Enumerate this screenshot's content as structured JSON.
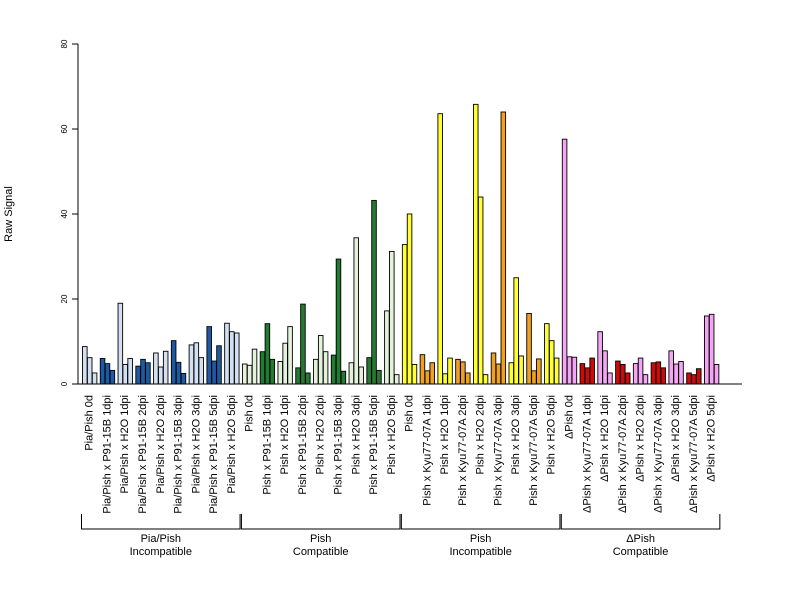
{
  "chart_data": {
    "type": "bar",
    "ylabel": "Raw Signal",
    "ylim": [
      0,
      80
    ],
    "yticks": [
      0,
      20,
      40,
      60,
      80
    ],
    "categories": [
      {
        "label": "Pia/Pish 0d",
        "values": [
          8.8,
          6.2,
          2.6
        ],
        "fill": "#d3e0f2"
      },
      {
        "label": "Pia/Pish x P91-15B 1dpi",
        "values": [
          6.0,
          4.8,
          3.2
        ],
        "fill": "#1e5aa3"
      },
      {
        "label": "Pia/Pish x H2O 1dpi",
        "values": [
          19.0,
          4.6,
          6.0
        ],
        "fill": "#d3e0f2"
      },
      {
        "label": "Pia/Pish x P91-15B 2dpi",
        "values": [
          4.2,
          5.8,
          5.0
        ],
        "fill": "#1e5aa3"
      },
      {
        "label": "Pia/Pish x H2O 2dpi",
        "values": [
          7.3,
          4.0,
          7.7
        ],
        "fill": "#d3e0f2"
      },
      {
        "label": "Pia/Pish x P91-15B 3dpi",
        "values": [
          10.2,
          5.1,
          2.5
        ],
        "fill": "#1e5aa3"
      },
      {
        "label": "Pia/Pish x H2O 3dpi",
        "values": [
          9.2,
          9.7,
          6.2
        ],
        "fill": "#d3e0f2"
      },
      {
        "label": "Pia/Pish x P91-15B 5dpi",
        "values": [
          13.5,
          5.4,
          9.0
        ],
        "fill": "#1e5aa3"
      },
      {
        "label": "Pia/Pish x H2O 5dpi",
        "values": [
          14.3,
          12.3,
          12.0
        ],
        "fill": "#d3e0f2"
      },
      {
        "label": "Pish 0d",
        "values": [
          4.7,
          4.4,
          8.2
        ],
        "fill": "#e4f2dc"
      },
      {
        "label": "Pish x P91-15B 1dpi",
        "values": [
          7.6,
          14.2,
          5.8
        ],
        "fill": "#247a32"
      },
      {
        "label": "Pish x H2O 1dpi",
        "values": [
          5.3,
          9.6,
          13.5
        ],
        "fill": "#e4f2dc"
      },
      {
        "label": "Pish x P91-15B 2dpi",
        "values": [
          3.8,
          18.8,
          2.6
        ],
        "fill": "#247a32"
      },
      {
        "label": "Pish x H2O 2dpi",
        "values": [
          5.8,
          11.4,
          7.6
        ],
        "fill": "#e4f2dc"
      },
      {
        "label": "Pish x P91-15B 3dpi",
        "values": [
          6.8,
          29.4,
          3.0
        ],
        "fill": "#247a32"
      },
      {
        "label": "Pish x H2O 3dpi",
        "values": [
          5.0,
          34.4,
          4.0
        ],
        "fill": "#e4f2dc"
      },
      {
        "label": "Pish x P91-15B 5dpi",
        "values": [
          6.2,
          43.2,
          3.2
        ],
        "fill": "#247a32"
      },
      {
        "label": "Pish x H2O 5dpi",
        "values": [
          17.2,
          31.2,
          2.2
        ],
        "fill": "#e4f2dc"
      },
      {
        "label": "Pish 0d",
        "values": [
          32.8,
          40.0,
          4.6
        ],
        "fill": "#ffff33"
      },
      {
        "label": "Pish x Kyu77-07A 1dpi",
        "values": [
          6.9,
          3.1,
          5.0
        ],
        "fill": "#f0a020"
      },
      {
        "label": "Pish x H2O 1dpi",
        "values": [
          63.6,
          2.4,
          6.1
        ],
        "fill": "#ffff33"
      },
      {
        "label": "Pish x Kyu77-07A 2dpi",
        "values": [
          5.8,
          5.2,
          2.6
        ],
        "fill": "#f0a020"
      },
      {
        "label": "Pish x H2O 2dpi",
        "values": [
          65.8,
          44.0,
          2.2
        ],
        "fill": "#ffff33"
      },
      {
        "label": "Pish x Kyu77-07A 3dpi",
        "values": [
          7.3,
          4.7,
          64.0
        ],
        "fill": "#f0a020"
      },
      {
        "label": "Pish x H2O 3dpi",
        "values": [
          5.0,
          25.0,
          6.6
        ],
        "fill": "#ffff33"
      },
      {
        "label": "Pish x Kyu77-07A 5dpi",
        "values": [
          16.6,
          3.1,
          5.9
        ],
        "fill": "#f0a020"
      },
      {
        "label": "Pish x H2O 5dpi",
        "values": [
          14.2,
          10.2,
          6.1
        ],
        "fill": "#ffff33"
      },
      {
        "label": "ΔPish 0d",
        "values": [
          57.6,
          6.4,
          6.3
        ],
        "fill": "#f4a6f4"
      },
      {
        "label": "ΔPish x Kyu77-07A 1dpi",
        "values": [
          4.8,
          3.8,
          6.1
        ],
        "fill": "#cc0a0a"
      },
      {
        "label": "ΔPish x H2O 1dpi",
        "values": [
          12.3,
          7.8,
          2.6
        ],
        "fill": "#f4a6f4"
      },
      {
        "label": "ΔPish x Kyu77-07A 2dpi",
        "values": [
          5.4,
          4.6,
          2.6
        ],
        "fill": "#cc0a0a"
      },
      {
        "label": "ΔPish x H2O 2dpi",
        "values": [
          4.8,
          6.1,
          2.2
        ],
        "fill": "#f4a6f4"
      },
      {
        "label": "ΔPish x Kyu77-07A 3dpi",
        "values": [
          5.0,
          5.2,
          3.8
        ],
        "fill": "#cc0a0a"
      },
      {
        "label": "ΔPish x H2O 3dpi",
        "values": [
          7.8,
          4.7,
          5.3
        ],
        "fill": "#f4a6f4"
      },
      {
        "label": "ΔPish x Kyu77-07A 5dpi",
        "values": [
          2.6,
          2.2,
          3.6
        ],
        "fill": "#cc0a0a"
      },
      {
        "label": "ΔPish x H2O 5dpi",
        "values": [
          16.0,
          16.4,
          4.6
        ],
        "fill": "#f4a6f4"
      }
    ],
    "groups": [
      {
        "line1": "Pia/Pish",
        "line2": "Incompatible",
        "first": 0,
        "last": 8
      },
      {
        "line1": "Pish",
        "line2": "Compatible",
        "first": 9,
        "last": 17
      },
      {
        "line1": "Pish",
        "line2": "Incompatible",
        "first": 18,
        "last": 26
      },
      {
        "line1": "ΔPish",
        "line2": "Compatible",
        "first": 27,
        "last": 35
      }
    ]
  }
}
